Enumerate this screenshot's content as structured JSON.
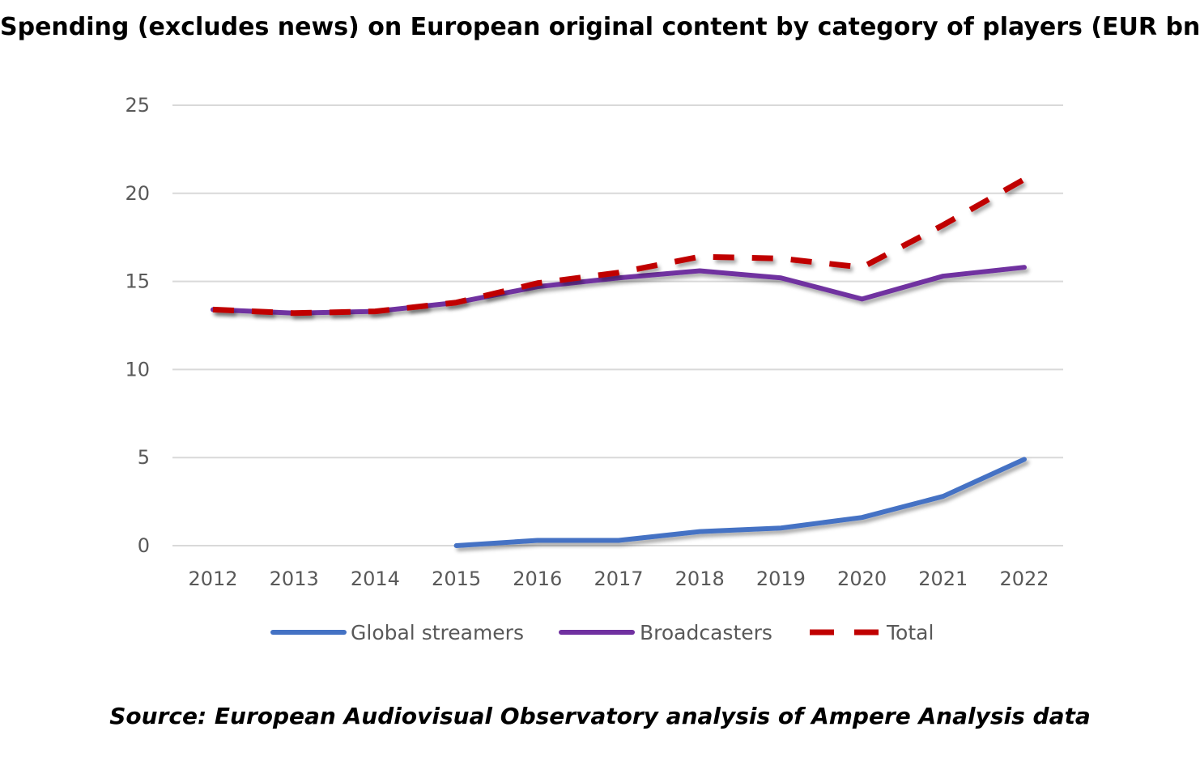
{
  "chart_data": {
    "type": "line",
    "title": "Spending (excludes news) on European original content by category of players (EUR bn)",
    "source": "Source: European Audiovisual Observatory analysis of Ampere Analysis data",
    "categories": [
      "2012",
      "2013",
      "2014",
      "2015",
      "2016",
      "2017",
      "2018",
      "2019",
      "2020",
      "2021",
      "2022"
    ],
    "ylim": [
      0,
      25
    ],
    "yticks": [
      "0",
      "5",
      "10",
      "15",
      "20",
      "25"
    ],
    "grid": true,
    "legend_position": "bottom",
    "series": [
      {
        "name": "Global streamers",
        "color": "#4472C4",
        "dash": "solid",
        "values": [
          null,
          null,
          null,
          0.0,
          0.3,
          0.3,
          0.8,
          1.0,
          1.6,
          2.8,
          4.9
        ]
      },
      {
        "name": "Broadcasters",
        "color": "#7030A0",
        "dash": "solid",
        "values": [
          13.4,
          13.2,
          13.3,
          13.8,
          14.7,
          15.2,
          15.6,
          15.2,
          14.0,
          15.3,
          15.8
        ]
      },
      {
        "name": "Total",
        "color": "#C00000",
        "dash": "dashed",
        "values": [
          13.4,
          13.2,
          13.3,
          13.8,
          14.9,
          15.5,
          16.4,
          16.3,
          15.8,
          18.2,
          20.8
        ]
      }
    ]
  }
}
